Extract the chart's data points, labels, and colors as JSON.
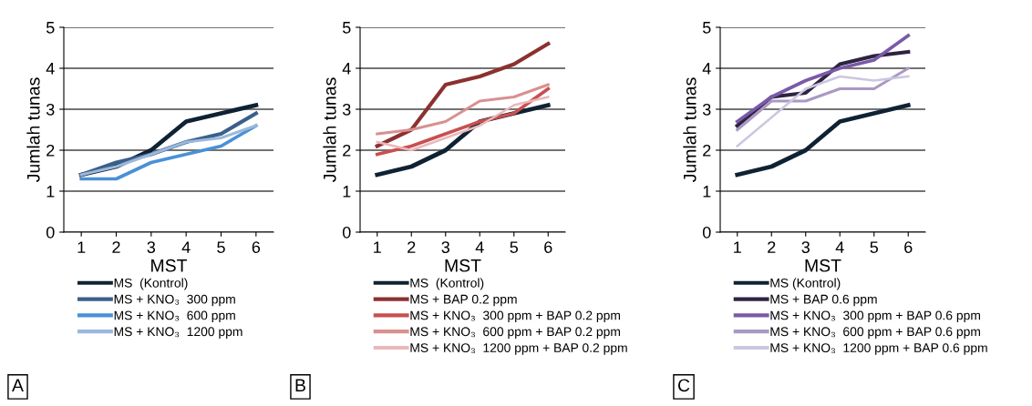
{
  "chart_data": [
    {
      "type": "line",
      "xlabel": "MST",
      "ylabel": "Jumlah tunas",
      "categories": [
        "1",
        "2",
        "3",
        "4",
        "5",
        "6"
      ],
      "ylim": [
        0,
        5
      ],
      "yticks": [
        0,
        1,
        2,
        3,
        4,
        5
      ],
      "grid": "y",
      "legend": "bottom",
      "marker": "none",
      "line_style": "solid",
      "annotations": [
        "A"
      ],
      "series": [
        {
          "name": "MS  (Kontrol)",
          "color": "#0f2233",
          "values": [
            1.4,
            1.6,
            2.0,
            2.7,
            2.9,
            3.1
          ]
        },
        {
          "name": "MS + KNO₃  300 ppm",
          "color": "#3a5f8c",
          "values": [
            1.4,
            1.7,
            1.9,
            2.2,
            2.4,
            2.9
          ]
        },
        {
          "name": "MS + KNO₃  600 ppm",
          "color": "#4a90d6",
          "values": [
            1.3,
            1.3,
            1.7,
            1.9,
            2.1,
            2.6
          ]
        },
        {
          "name": "MS + KNO₃  1200 ppm",
          "color": "#9bb8dc",
          "values": [
            1.4,
            1.6,
            1.9,
            2.2,
            2.3,
            2.6
          ]
        }
      ]
    },
    {
      "type": "line",
      "xlabel": "MST",
      "ylabel": "Jumlah tunas",
      "categories": [
        "1",
        "2",
        "3",
        "4",
        "5",
        "6"
      ],
      "ylim": [
        0,
        5
      ],
      "yticks": [
        0,
        1,
        2,
        3,
        4,
        5
      ],
      "grid": "y",
      "legend": "bottom",
      "marker": "none",
      "line_style": "solid",
      "annotations": [
        "B"
      ],
      "series": [
        {
          "name": "MS  (Kontrol)",
          "color": "#0f2233",
          "values": [
            1.4,
            1.6,
            2.0,
            2.7,
            2.9,
            3.1
          ]
        },
        {
          "name": "MS + BAP 0.2 ppm",
          "color": "#8c3030",
          "values": [
            2.1,
            2.5,
            3.6,
            3.8,
            4.1,
            4.6
          ]
        },
        {
          "name": "MS + KNO₃  300 ppm + BAP 0.2 ppm",
          "color": "#c85050",
          "values": [
            1.9,
            2.1,
            2.4,
            2.7,
            2.9,
            3.5
          ]
        },
        {
          "name": "MS + KNO₃  600 ppm + BAP 0.2 ppm",
          "color": "#d99090",
          "values": [
            2.4,
            2.5,
            2.7,
            3.2,
            3.3,
            3.6
          ]
        },
        {
          "name": "MS + KNO₃  1200 ppm + BAP 0.2 ppm",
          "color": "#eab8bc",
          "values": [
            2.2,
            2.0,
            2.3,
            2.6,
            3.1,
            3.3
          ]
        }
      ]
    },
    {
      "type": "line",
      "xlabel": "MST",
      "ylabel": "Jumlah tunas",
      "categories": [
        "1",
        "2",
        "3",
        "4",
        "5",
        "6"
      ],
      "ylim": [
        0,
        5
      ],
      "yticks": [
        0,
        1,
        2,
        3,
        4,
        5
      ],
      "grid": "y",
      "legend": "bottom",
      "marker": "none",
      "line_style": "solid",
      "annotations": [
        "C"
      ],
      "series": [
        {
          "name": "MS (Kontrol)",
          "color": "#0f2233",
          "values": [
            1.4,
            1.6,
            2.0,
            2.7,
            2.9,
            3.1
          ]
        },
        {
          "name": "MS + BAP 0.6 ppm",
          "color": "#2e2440",
          "values": [
            2.6,
            3.3,
            3.4,
            4.1,
            4.3,
            4.4
          ]
        },
        {
          "name": "MS + KNO₃  300 ppm + BAP 0.6 ppm",
          "color": "#7a5aa8",
          "values": [
            2.7,
            3.3,
            3.7,
            4.0,
            4.2,
            4.8
          ]
        },
        {
          "name": "MS + KNO₃  600 ppm + BAP 0.6 ppm",
          "color": "#aa98c4",
          "values": [
            2.5,
            3.2,
            3.2,
            3.5,
            3.5,
            4.0
          ]
        },
        {
          "name": "MS + KNO₃  1200 ppm + BAP 0.6 ppm",
          "color": "#ccc6e0",
          "values": [
            2.1,
            2.8,
            3.5,
            3.8,
            3.7,
            3.8
          ]
        }
      ]
    }
  ]
}
